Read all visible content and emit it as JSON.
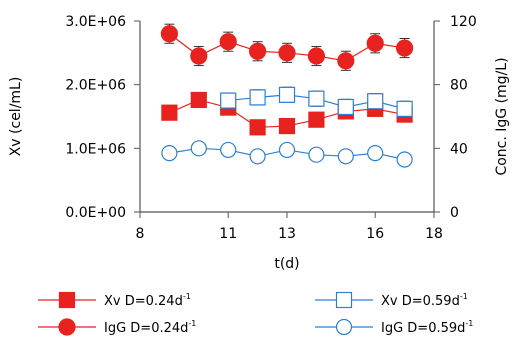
{
  "chart_data": {
    "type": "line",
    "xlabel": "t(d)",
    "ylabel_left": "Xv (cel/mL)",
    "ylabel_right": "Conc. IgG (mg/L)",
    "x_ticks": [
      8,
      11,
      13,
      16,
      18
    ],
    "xlim": [
      8,
      18
    ],
    "y_left_ticks": [
      "0.0E+00",
      "1.0E+06",
      "2.0E+06",
      "3.0E+06"
    ],
    "y_left_tick_values": [
      0,
      1000000,
      2000000,
      3000000
    ],
    "ylim_left": [
      0,
      3000000
    ],
    "y_right_ticks": [
      "0",
      "40",
      "80",
      "120"
    ],
    "y_right_tick_values": [
      0,
      40,
      80,
      120
    ],
    "ylim_right": [
      0,
      120
    ],
    "grid": false,
    "legend_position": "bottom",
    "series": [
      {
        "key": "xv_024",
        "legend_main": "Xv D=0.24d",
        "legend_sup": "-1",
        "axis": "left",
        "marker": "square",
        "filled": true,
        "color": "#e8231f",
        "x": [
          9.0,
          10.0,
          11.0,
          12.0,
          13.0,
          14.0,
          15.0,
          16.0,
          17.0
        ],
        "y": [
          1560000,
          1760000,
          1640000,
          1330000,
          1350000,
          1450000,
          1580000,
          1620000,
          1530000
        ],
        "err": [
          60000,
          60000,
          60000,
          60000,
          60000,
          60000,
          60000,
          60000,
          60000
        ]
      },
      {
        "key": "xv_059",
        "legend_main": "Xv D=0.59d",
        "legend_sup": "-1",
        "axis": "left",
        "marker": "square",
        "filled": false,
        "color": "#2e7fd4",
        "x": [
          11.0,
          12.0,
          13.0,
          14.0,
          15.0,
          16.0,
          17.0
        ],
        "y": [
          1750000,
          1800000,
          1840000,
          1780000,
          1650000,
          1740000,
          1620000
        ],
        "err": [
          120000,
          120000,
          120000,
          120000,
          120000,
          120000,
          120000
        ]
      },
      {
        "key": "igg_024",
        "legend_main": "IgG D=0.24d",
        "legend_sup": "-1",
        "axis": "right",
        "marker": "circle",
        "filled": true,
        "color": "#e8231f",
        "x": [
          9.0,
          10.0,
          11.0,
          12.0,
          13.0,
          14.0,
          15.0,
          16.0,
          17.0
        ],
        "y": [
          112,
          98,
          107,
          101,
          100,
          98,
          95,
          106,
          103
        ],
        "err": [
          6,
          6,
          6,
          6,
          6,
          6,
          6,
          6,
          6
        ]
      },
      {
        "key": "igg_059",
        "legend_main": "IgG D=0.59d",
        "legend_sup": "-1",
        "axis": "right",
        "marker": "circle",
        "filled": false,
        "color": "#2e7fd4",
        "x": [
          9.0,
          10.0,
          11.0,
          12.0,
          13.0,
          14.0,
          15.0,
          16.0,
          17.0
        ],
        "y": [
          37,
          40,
          39,
          35,
          39,
          36,
          35,
          37,
          33
        ],
        "err": [
          0,
          0,
          0,
          0,
          0,
          0,
          0,
          0,
          0
        ]
      }
    ]
  }
}
